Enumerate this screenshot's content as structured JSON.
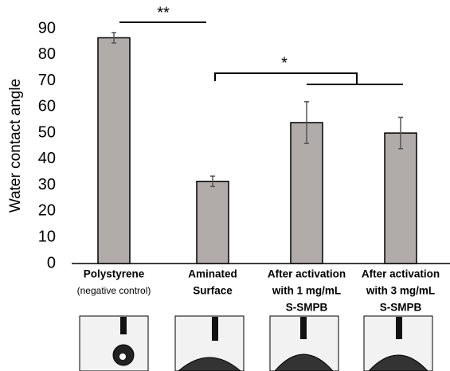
{
  "chart_data": {
    "type": "bar",
    "y_label": "Water contact angle",
    "categories": [
      [
        "Polystyrene",
        "(negative control)"
      ],
      [
        "Aminated",
        "Surface"
      ],
      [
        "After activation",
        "with 1 mg/mL",
        "S-SMPB"
      ],
      [
        "After activation",
        "with 3 mg/mL",
        "S-SMPB"
      ]
    ],
    "values": [
      86.5,
      31.5,
      54,
      50
    ],
    "errors": [
      2,
      2,
      8,
      6
    ],
    "color": "#b1aca9",
    "ylim": [
      0,
      90
    ],
    "yticks": [
      0,
      10,
      20,
      30,
      40,
      50,
      60,
      70,
      80,
      90
    ],
    "annotations": [
      "**",
      "*"
    ]
  }
}
